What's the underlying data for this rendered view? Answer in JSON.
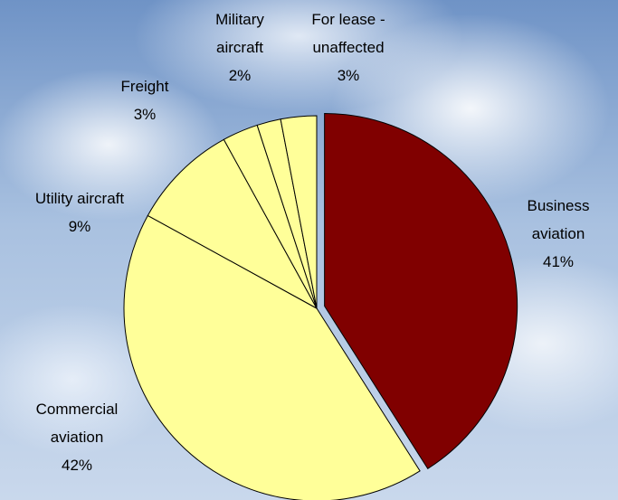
{
  "chart_data": {
    "type": "pie",
    "categories": [
      "Business aviation",
      "Commercial aviation",
      "Utility aircraft",
      "Freight",
      "Military aircraft",
      "For lease - unaffected"
    ],
    "values": [
      41,
      42,
      9,
      3,
      2,
      3
    ],
    "value_labels": [
      "41%",
      "42%",
      "9%",
      "3%",
      "2%",
      "3%"
    ],
    "colors": [
      "#800000",
      "#ffff99",
      "#ffff99",
      "#ffff99",
      "#ffff99",
      "#ffff99"
    ],
    "exploded": [
      true,
      false,
      false,
      false,
      false,
      false
    ]
  }
}
